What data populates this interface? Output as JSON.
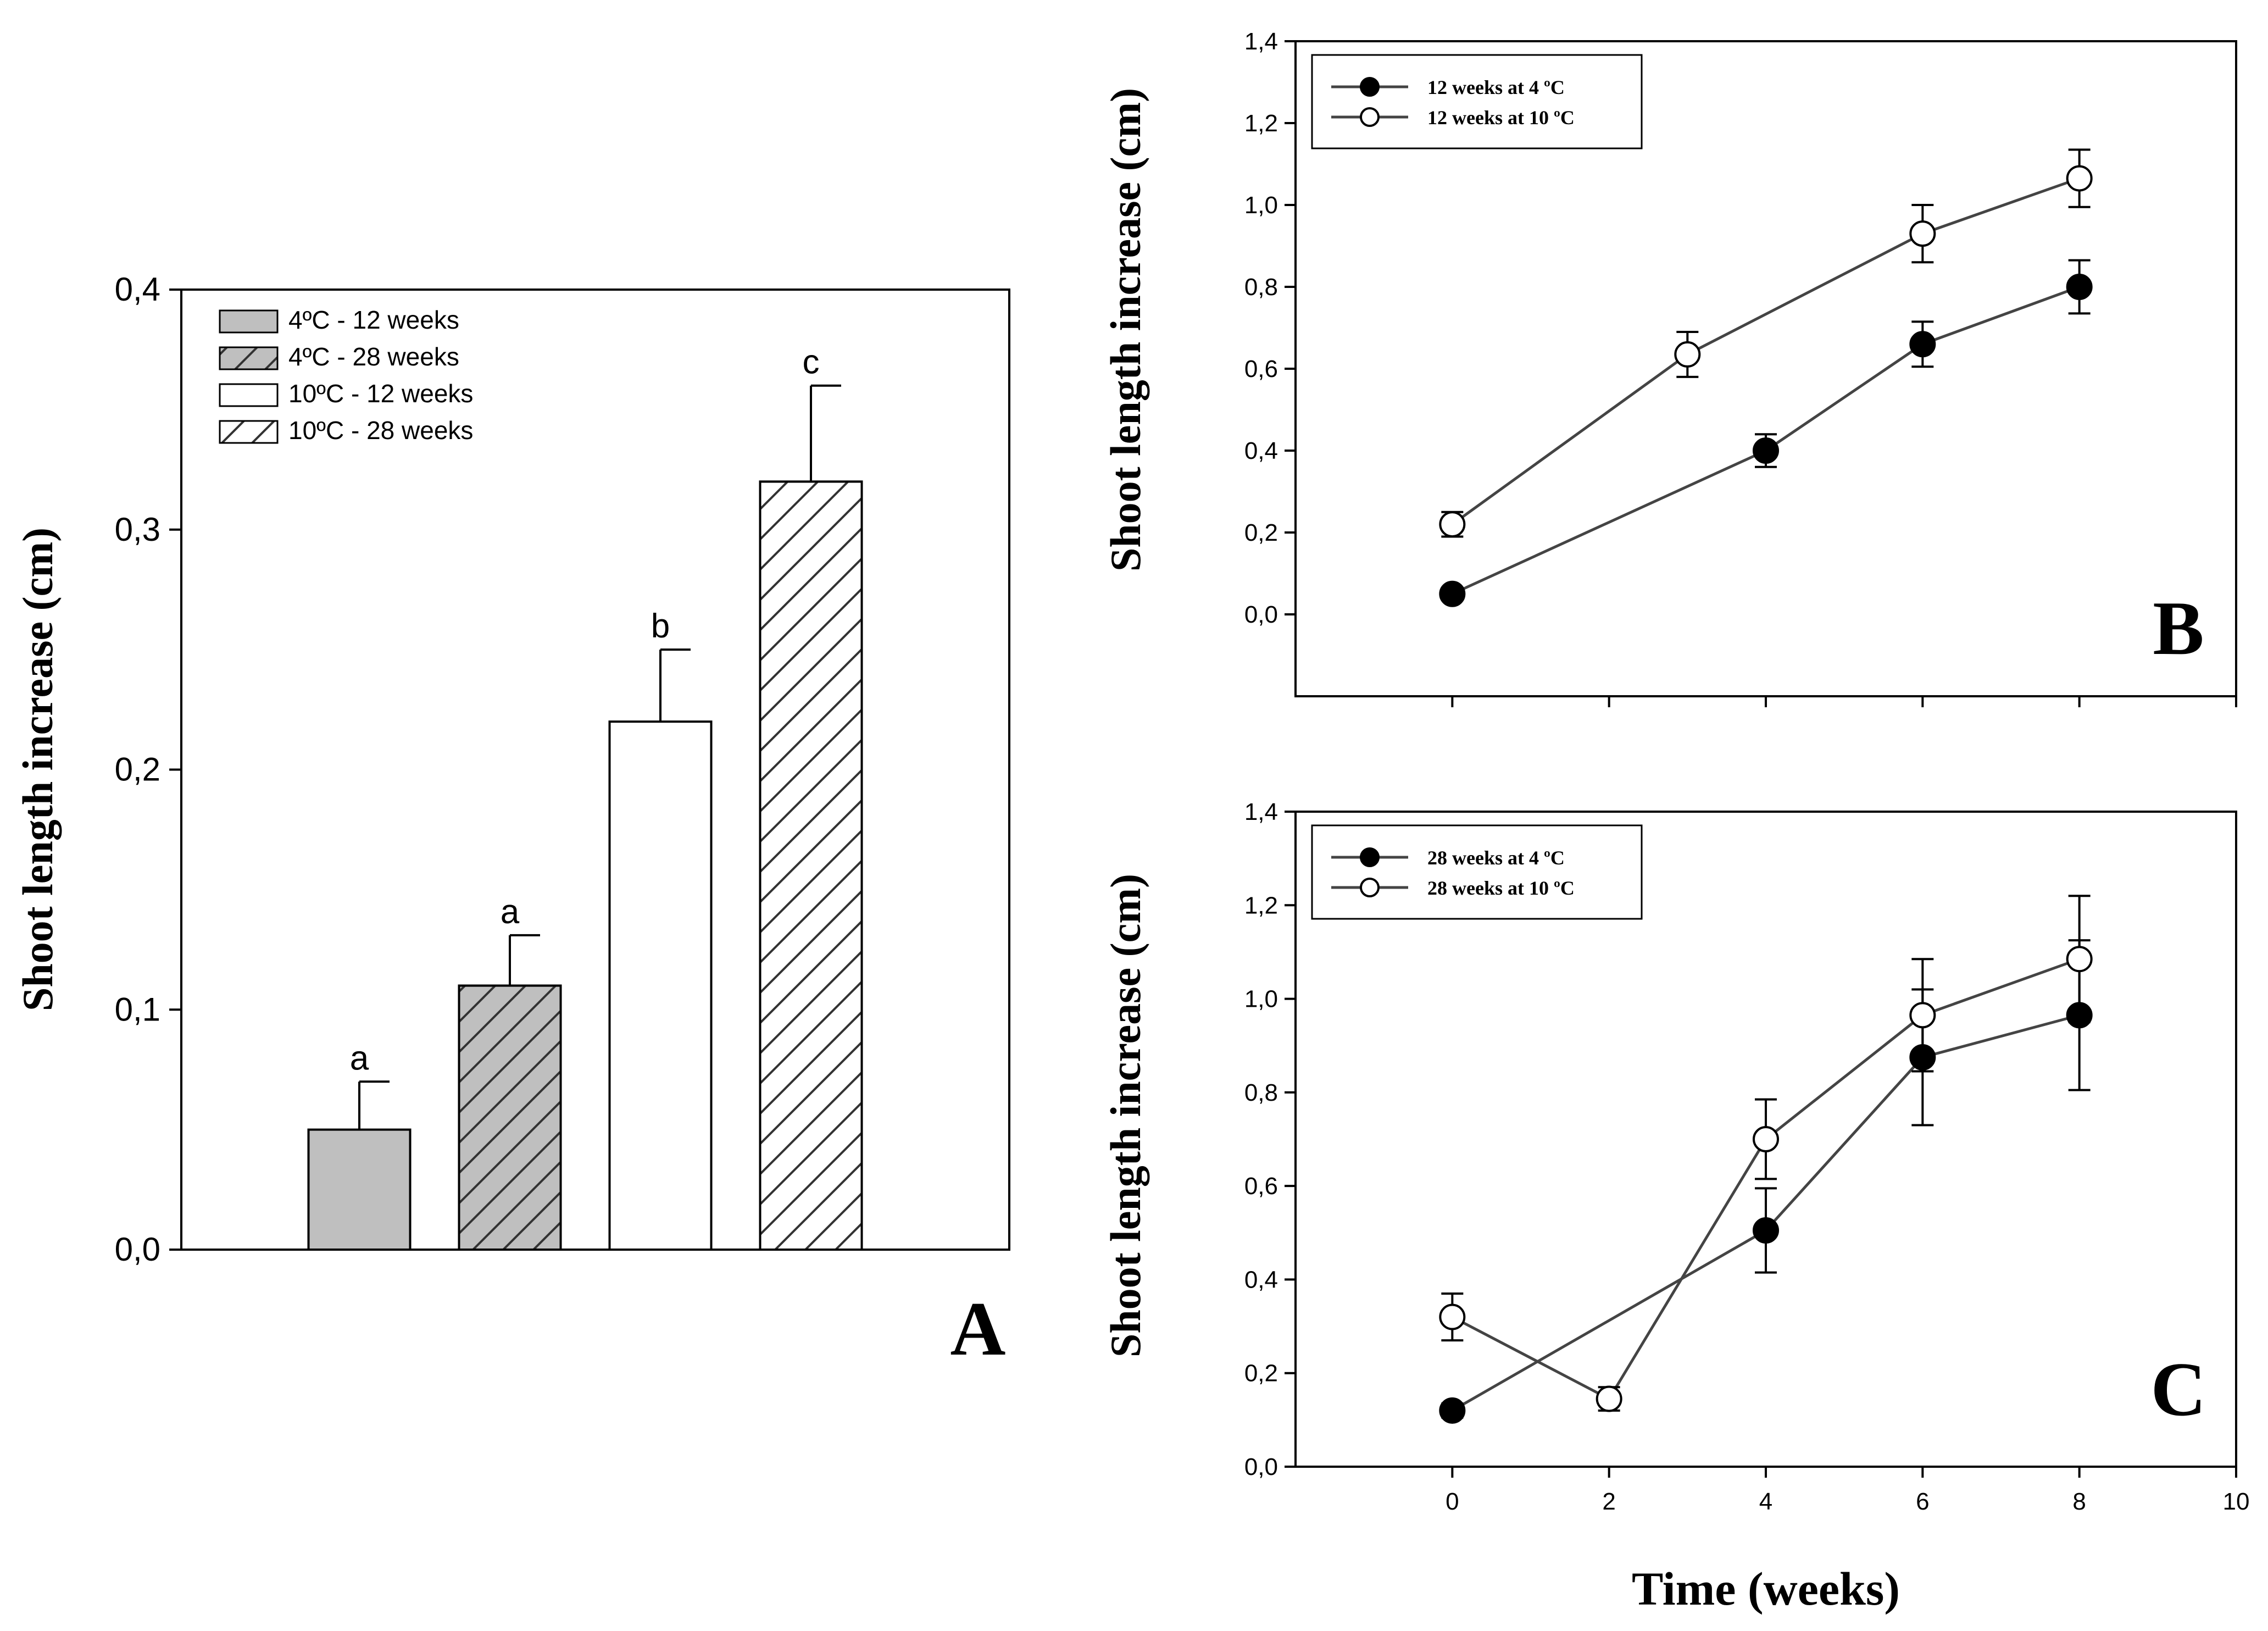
{
  "chart_data": [
    {
      "panel": "A",
      "type": "bar",
      "panel_label": "A",
      "ylabel": "Shoot length increase (cm)",
      "ylim": [
        0,
        0.4
      ],
      "y_ticks": [
        "0,0",
        "0,1",
        "0,2",
        "0,3",
        "0,4"
      ],
      "categories": [
        "4ºC - 12 weeks",
        "4ºC - 28 weeks",
        "10ºC - 12 weeks",
        "10ºC - 28 weeks"
      ],
      "legend": [
        "4ºC - 12 weeks",
        "4ºC - 28 weeks",
        "10ºC - 12 weeks",
        "10ºC - 28 weeks"
      ],
      "legend_position": "top-left",
      "values": [
        0.05,
        0.11,
        0.22,
        0.32
      ],
      "errors": [
        0.02,
        0.021,
        0.03,
        0.04
      ],
      "letters": [
        "a",
        "a",
        "b",
        "c"
      ],
      "fills": [
        "#bfbfbf",
        "#bfbfbf",
        "#ffffff",
        "#ffffff"
      ],
      "hatched": [
        false,
        true,
        false,
        true
      ]
    },
    {
      "panel": "B",
      "type": "line",
      "panel_label": "B",
      "ylabel": "Shoot length increase (cm)",
      "ylim": [
        -0.2,
        1.4
      ],
      "xlim": [
        -2,
        10
      ],
      "y_ticks": [
        "0,0",
        "0,2",
        "0,4",
        "0,6",
        "0,8",
        "1,0",
        "1,2",
        "1,4"
      ],
      "legend_position": "top-left",
      "series": [
        {
          "name": "12 weeks  at 4 ºC",
          "marker": "filled",
          "x": [
            0,
            4,
            6,
            8
          ],
          "y": [
            0.05,
            0.4,
            0.66,
            0.8
          ],
          "err": [
            0.01,
            0.04,
            0.055,
            0.065
          ]
        },
        {
          "name": "12 weeks  at 10 ºC",
          "marker": "open",
          "x": [
            0,
            3,
            6,
            8
          ],
          "y": [
            0.22,
            0.635,
            0.93,
            1.065
          ],
          "err": [
            0.03,
            0.055,
            0.07,
            0.07
          ]
        }
      ]
    },
    {
      "panel": "C",
      "type": "line",
      "panel_label": "C",
      "ylabel": "Shoot length increase (cm)",
      "xlabel": "Time (weeks)",
      "ylim": [
        0,
        1.4
      ],
      "xlim": [
        -2,
        10
      ],
      "x_ticks": [
        "0",
        "2",
        "4",
        "6",
        "8",
        "10"
      ],
      "y_ticks": [
        "0,0",
        "0,2",
        "0,4",
        "0,6",
        "0,8",
        "1,0",
        "1,2",
        "1,4"
      ],
      "legend_position": "top-left",
      "series": [
        {
          "name": "28 weeks  at 4 ºC",
          "marker": "filled",
          "x": [
            0,
            4,
            6,
            8
          ],
          "y": [
            0.12,
            0.505,
            0.875,
            0.965
          ],
          "err": [
            0.015,
            0.09,
            0.145,
            0.16
          ]
        },
        {
          "name": "28 weeks  at 10 ºC",
          "marker": "open",
          "x": [
            0,
            2,
            4,
            6,
            8
          ],
          "y": [
            0.32,
            0.145,
            0.7,
            0.965,
            1.085
          ],
          "err": [
            0.05,
            0.025,
            0.085,
            0.12,
            0.135
          ]
        }
      ]
    }
  ]
}
